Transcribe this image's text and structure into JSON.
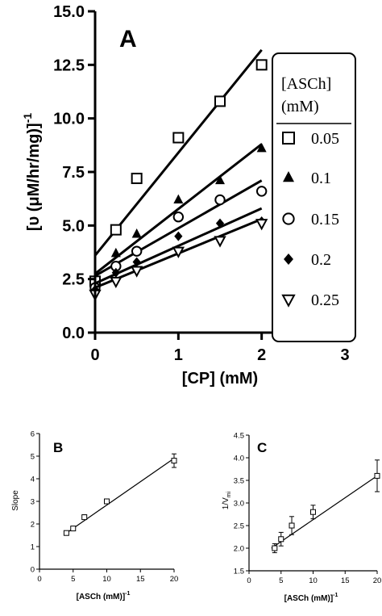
{
  "chart_data": [
    {
      "panel": "A",
      "type": "scatter",
      "xlabel": "[CP] (mM)",
      "ylabel": "[υ (μM/hr/mg)]",
      "ylabel_sup": "-1",
      "xlim": [
        0,
        3
      ],
      "ylim": [
        0,
        15
      ],
      "xticks": [
        0,
        1,
        2,
        3
      ],
      "yticks": [
        0.0,
        2.5,
        5.0,
        7.5,
        10.0,
        12.5,
        15.0
      ],
      "xtick_labels": [
        "0",
        "1",
        "2",
        "3"
      ],
      "ytick_labels": [
        "0.0",
        "2.5",
        "5.0",
        "7.5",
        "10.0",
        "12.5",
        "15.0"
      ],
      "grid": false,
      "legend_placement": "right",
      "legend_title": "[ASCh] (mM)",
      "legend_title_lines": [
        "[ASCh]",
        "(mM)"
      ],
      "series": [
        {
          "name": "0.05",
          "marker": "square-open",
          "x": [
            0,
            0.25,
            0.5,
            1,
            1.5,
            2
          ],
          "y": [
            2.4,
            4.8,
            7.2,
            9.1,
            10.8,
            12.5
          ],
          "fit": [
            3.6,
            13.2
          ]
        },
        {
          "name": "0.1",
          "marker": "triangle-filled",
          "x": [
            0,
            0.25,
            0.5,
            1,
            1.5,
            2
          ],
          "y": [
            2.2,
            3.7,
            4.6,
            6.2,
            7.1,
            8.6
          ],
          "fit": [
            2.75,
            8.8
          ]
        },
        {
          "name": "0.15",
          "marker": "circle-open",
          "x": [
            0,
            0.25,
            0.5,
            1,
            1.5,
            2
          ],
          "y": [
            2.1,
            3.1,
            3.8,
            5.4,
            6.2,
            6.6
          ],
          "fit": [
            2.65,
            7.1
          ]
        },
        {
          "name": "0.2",
          "marker": "diamond-filled",
          "x": [
            0,
            0.25,
            0.5,
            1,
            1.5,
            2
          ],
          "y": [
            2.0,
            2.8,
            3.3,
            4.5,
            5.1,
            5.2
          ],
          "fit": [
            2.3,
            5.8
          ]
        },
        {
          "name": "0.25",
          "marker": "triangle-down-open",
          "x": [
            0,
            0.25,
            0.5,
            1,
            1.5,
            2
          ],
          "y": [
            1.8,
            2.4,
            2.9,
            3.8,
            4.3,
            5.1
          ],
          "fit": [
            2.1,
            5.3
          ]
        }
      ]
    },
    {
      "panel": "B",
      "type": "scatter",
      "xlabel": "[ASCh (mM)]",
      "xlabel_sup": "-1",
      "ylabel": "Slope",
      "xlim": [
        0,
        20
      ],
      "ylim": [
        0,
        6
      ],
      "xticks": [
        0,
        5,
        10,
        15,
        20
      ],
      "yticks": [
        0,
        1,
        2,
        3,
        4,
        5,
        6
      ],
      "xtick_labels": [
        "0",
        "5",
        "10",
        "15",
        "20"
      ],
      "ytick_labels": [
        "0",
        "1",
        "2",
        "3",
        "4",
        "5",
        "6"
      ],
      "grid": false,
      "series": [
        {
          "marker": "square-open",
          "x": [
            4,
            5,
            6.67,
            10,
            20
          ],
          "y": [
            1.6,
            1.8,
            2.3,
            3.0,
            4.8
          ],
          "err": [
            0.05,
            0.1,
            0.1,
            0.1,
            0.3
          ],
          "fit": [
            [
              4,
              1.6
            ],
            [
              20,
              4.9
            ]
          ]
        }
      ]
    },
    {
      "panel": "C",
      "type": "scatter",
      "xlabel": "[ASCh (mM)]",
      "xlabel_sup": "-1",
      "ylabel": "1/V",
      "ylabel_sub": "mi",
      "xlim": [
        0,
        20
      ],
      "ylim": [
        1.5,
        4.5
      ],
      "xticks": [
        0,
        5,
        10,
        15,
        20
      ],
      "yticks": [
        1.5,
        2.0,
        2.5,
        3.0,
        3.5,
        4.0,
        4.5
      ],
      "xtick_labels": [
        "0",
        "5",
        "10",
        "15",
        "20"
      ],
      "ytick_labels": [
        "1.5",
        "2.0",
        "2.5",
        "3.0",
        "3.5",
        "4.0",
        "4.5"
      ],
      "grid": false,
      "series": [
        {
          "marker": "square-open",
          "x": [
            4,
            5,
            6.67,
            10,
            20
          ],
          "y": [
            2.0,
            2.2,
            2.5,
            2.8,
            3.6
          ],
          "err": [
            0.1,
            0.15,
            0.2,
            0.15,
            0.35
          ],
          "fit": [
            [
              3.5,
              2.0
            ],
            [
              20,
              3.6
            ]
          ]
        }
      ]
    }
  ]
}
